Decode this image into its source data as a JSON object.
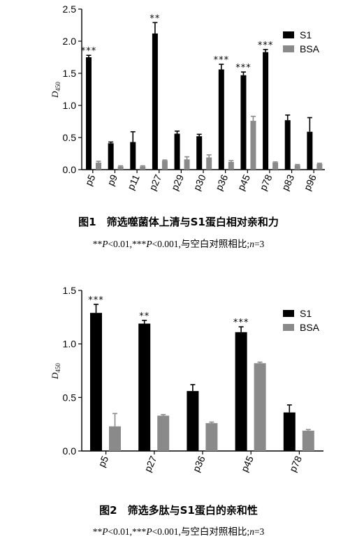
{
  "figures": [
    {
      "caption": "图1　筛选噬菌体上清与S1蛋白相对亲和力",
      "note": "**P<0.01,***P<0.001,与空白对照相比;n=3",
      "chart_data": {
        "type": "bar",
        "ylabel": "D",
        "ylabel_sub": "450",
        "ylim": [
          0,
          2.5
        ],
        "yticks": [
          "0.0",
          "0.5",
          "1.0",
          "1.5",
          "2.0",
          "2.5"
        ],
        "categories": [
          "p5",
          "p9",
          "p11",
          "p27",
          "p29",
          "p30",
          "p36",
          "p45",
          "p78",
          "p83",
          "p96"
        ],
        "series": [
          {
            "name": "S1",
            "color": "#000000",
            "values": [
              1.75,
              0.41,
              0.43,
              2.12,
              0.56,
              0.52,
              1.56,
              1.47,
              1.83,
              0.77,
              0.59
            ],
            "errors": [
              0.03,
              0.02,
              0.16,
              0.17,
              0.04,
              0.03,
              0.08,
              0.05,
              0.04,
              0.08,
              0.22
            ]
          },
          {
            "name": "BSA",
            "color": "#8a8a8a",
            "values": [
              0.11,
              0.05,
              0.05,
              0.14,
              0.16,
              0.19,
              0.12,
              0.76,
              0.11,
              0.07,
              0.09
            ],
            "errors": [
              0.02,
              0.01,
              0.01,
              0.01,
              0.04,
              0.04,
              0.02,
              0.07,
              0.01,
              0.01,
              0.01
            ]
          }
        ],
        "annotations": [
          "***",
          "",
          "",
          "**",
          "",
          "",
          "***",
          "***",
          "***",
          "",
          ""
        ],
        "legend_position": "top-right"
      }
    },
    {
      "caption": "图2　筛选多肽与S1蛋白的亲和性",
      "note": "**P<0.01,***P<0.001,与空白对照相比;n=3",
      "chart_data": {
        "type": "bar",
        "ylabel": "D",
        "ylabel_sub": "450",
        "ylim": [
          0,
          1.5
        ],
        "yticks": [
          "0.0",
          "0.5",
          "1.0",
          "1.5"
        ],
        "categories": [
          "p5",
          "p27",
          "p36",
          "p45",
          "p78"
        ],
        "series": [
          {
            "name": "S1",
            "color": "#000000",
            "values": [
              1.29,
              1.19,
              0.56,
              1.11,
              0.36
            ],
            "errors": [
              0.08,
              0.03,
              0.06,
              0.05,
              0.07
            ]
          },
          {
            "name": "BSA",
            "color": "#8a8a8a",
            "values": [
              0.23,
              0.33,
              0.26,
              0.82,
              0.19
            ],
            "errors": [
              0.12,
              0.01,
              0.01,
              0.01,
              0.01
            ]
          }
        ],
        "annotations": [
          "***",
          "**",
          "",
          "***",
          ""
        ],
        "legend_position": "top-right"
      }
    }
  ]
}
